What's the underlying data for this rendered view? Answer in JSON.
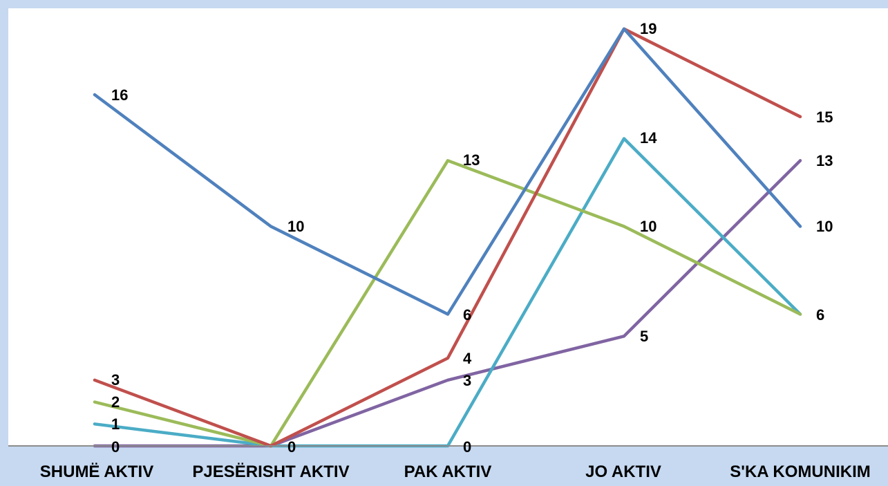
{
  "chart_data": {
    "type": "line",
    "title": "",
    "xlabel": "",
    "ylabel": "",
    "categories": [
      "SHUMË AKTIV",
      "PJESËRISHT AKTIV",
      "PAK AKTIV",
      "JO AKTIV",
      "S'KA KOMUNIKIM"
    ],
    "ylim": [
      0,
      20
    ],
    "grid": false,
    "legend": "none",
    "series": [
      {
        "values": [
          16,
          10,
          6,
          19,
          10
        ],
        "color": "#4f81bd"
      },
      {
        "values": [
          3,
          0,
          4,
          19,
          15
        ],
        "color": "#c0504d"
      },
      {
        "values": [
          2,
          0,
          13,
          10,
          6
        ],
        "color": "#9bbb59"
      },
      {
        "values": [
          0,
          0,
          3,
          5,
          13
        ],
        "color": "#8064a2"
      },
      {
        "values": [
          1,
          0,
          0,
          14,
          6
        ],
        "color": "#4bacc6"
      }
    ],
    "data_labels": [
      {
        "category": 0,
        "text": "16"
      },
      {
        "category": 0,
        "text": "3"
      },
      {
        "category": 0,
        "text": "2"
      },
      {
        "category": 0,
        "text": "1"
      },
      {
        "category": 0,
        "text": "0"
      },
      {
        "category": 1,
        "text": "10"
      },
      {
        "category": 1,
        "text": "0"
      },
      {
        "category": 2,
        "text": "13"
      },
      {
        "category": 2,
        "text": "6"
      },
      {
        "category": 2,
        "text": "4"
      },
      {
        "category": 2,
        "text": "3"
      },
      {
        "category": 2,
        "text": "0"
      },
      {
        "category": 3,
        "text": "19"
      },
      {
        "category": 3,
        "text": "14"
      },
      {
        "category": 3,
        "text": "10"
      },
      {
        "category": 3,
        "text": "5"
      },
      {
        "category": 4,
        "text": "15"
      },
      {
        "category": 4,
        "text": "13"
      },
      {
        "category": 4,
        "text": "10"
      },
      {
        "category": 4,
        "text": "6"
      }
    ]
  },
  "colors": {
    "background": "#c6d9f1",
    "plot_area": "#ffffff",
    "axis": "#8c8c8c"
  }
}
